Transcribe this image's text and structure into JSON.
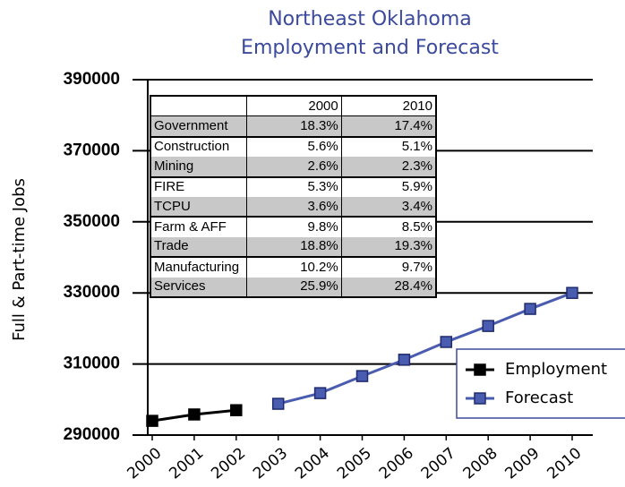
{
  "chart_data": {
    "type": "line",
    "title": "Northeast Oklahoma Employment and Forecast",
    "ylabel": "Full & Part-time Jobs",
    "categories": [
      "2000",
      "2001",
      "2002",
      "2003",
      "2004",
      "2005",
      "2006",
      "2007",
      "2008",
      "2009",
      "2010"
    ],
    "series": [
      {
        "name": "Employment",
        "color": "#000000",
        "values": [
          294000,
          295800,
          297000,
          null,
          null,
          null,
          null,
          null,
          null,
          null,
          null
        ]
      },
      {
        "name": "Forecast",
        "color": "#4a5cb0",
        "values": [
          null,
          null,
          null,
          298800,
          301800,
          306600,
          311200,
          316200,
          320700,
          325500,
          330000
        ]
      }
    ],
    "ylim": [
      290000,
      390000
    ],
    "yticks": [
      290000,
      310000,
      330000,
      350000,
      370000,
      390000
    ],
    "grid": true,
    "legend": "lower right",
    "table": {
      "header": [
        "2000",
        "2010"
      ],
      "rows": [
        [
          "Government",
          "18.3%",
          "17.4%"
        ],
        [
          "Construction",
          "5.6%",
          "5.1%"
        ],
        [
          "Mining",
          "2.6%",
          "2.3%"
        ],
        [
          "FIRE",
          "5.3%",
          "5.9%"
        ],
        [
          "TCPU",
          "3.6%",
          "3.4%"
        ],
        [
          "Farm & AFF",
          "9.8%",
          "8.5%"
        ],
        [
          "Trade",
          "18.8%",
          "19.3%"
        ],
        [
          "Manufacturing",
          "10.2%",
          "9.7%"
        ],
        [
          "Services",
          "25.9%",
          "28.4%"
        ]
      ]
    }
  }
}
